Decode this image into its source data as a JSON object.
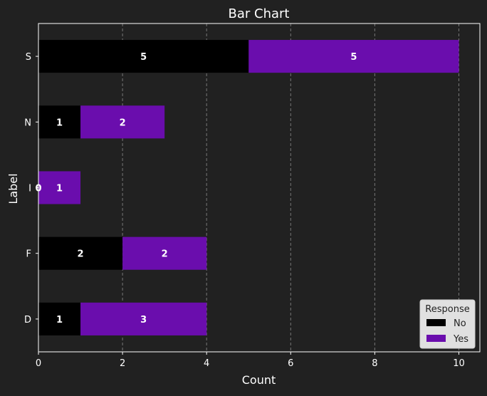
{
  "chart_data": {
    "type": "bar",
    "orientation": "horizontal",
    "stacked": true,
    "title": "Bar Chart",
    "xlabel": "Count",
    "ylabel": "Label",
    "xlim": [
      0,
      10.5
    ],
    "xticks": [
      0,
      2,
      4,
      6,
      8,
      10
    ],
    "categories": [
      "S",
      "N",
      "I",
      "F",
      "D"
    ],
    "series": [
      {
        "name": "No",
        "color": "#000000",
        "values": [
          5,
          1,
          0,
          2,
          1
        ]
      },
      {
        "name": "Yes",
        "color": "#6a0dad",
        "values": [
          5,
          2,
          1,
          2,
          3
        ]
      }
    ],
    "grid": {
      "x": true,
      "y": false,
      "style": "dashed"
    },
    "legend": {
      "title": "Response",
      "placement": "bottom-right"
    },
    "colors": {
      "background": "#212121",
      "text": "#ffffff",
      "axis": "#ffffff",
      "grid": "#777777",
      "legend_bg": "#e0e0e0",
      "legend_text": "#222222"
    }
  }
}
